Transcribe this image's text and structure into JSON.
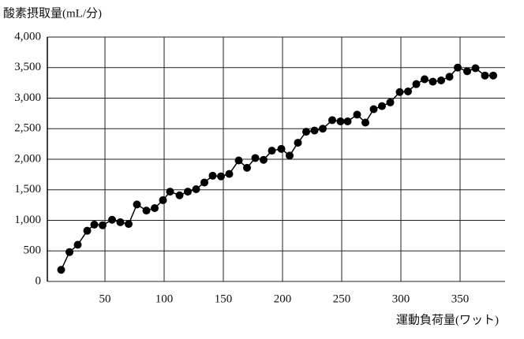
{
  "chart_data": {
    "type": "line",
    "title": "酸素摂取量(mL/分)",
    "x_label": "運動負荷量(ワット)",
    "x": [
      13,
      20,
      27,
      35,
      41,
      48,
      56,
      63,
      70,
      77,
      85,
      92,
      99,
      105,
      113,
      120,
      127,
      134,
      141,
      148,
      155,
      163,
      170,
      177,
      184,
      191,
      199,
      206,
      213,
      220,
      227,
      234,
      242,
      249,
      255,
      263,
      270,
      277,
      284,
      291,
      299,
      306,
      313,
      320,
      327,
      334,
      341,
      348,
      356,
      363,
      371,
      378
    ],
    "values": [
      190,
      480,
      600,
      830,
      930,
      920,
      1010,
      970,
      940,
      1260,
      1160,
      1200,
      1330,
      1470,
      1410,
      1470,
      1510,
      1620,
      1730,
      1720,
      1760,
      1980,
      1860,
      2020,
      1990,
      2140,
      2170,
      2060,
      2270,
      2450,
      2470,
      2500,
      2640,
      2620,
      2620,
      2730,
      2600,
      2820,
      2870,
      2930,
      3100,
      3110,
      3230,
      3310,
      3270,
      3290,
      3350,
      3500,
      3440,
      3490,
      3370,
      3370
    ],
    "color": "#000000",
    "xlim": [
      0,
      388
    ],
    "ylim": [
      0,
      4000
    ],
    "xticks": [
      50,
      100,
      150,
      200,
      250,
      300,
      350
    ],
    "yticks": [
      0,
      500,
      {
        "value": 1000,
        "label": "1,000"
      },
      {
        "value": 1500,
        "label": "1,500"
      },
      {
        "value": 2000,
        "label": "2,000"
      },
      {
        "value": 2500,
        "label": "2,500"
      },
      {
        "value": 3000,
        "label": "3,000"
      },
      {
        "value": 3500,
        "label": "3,500"
      },
      {
        "value": 4000,
        "label": "4,000"
      }
    ],
    "grid": true
  }
}
